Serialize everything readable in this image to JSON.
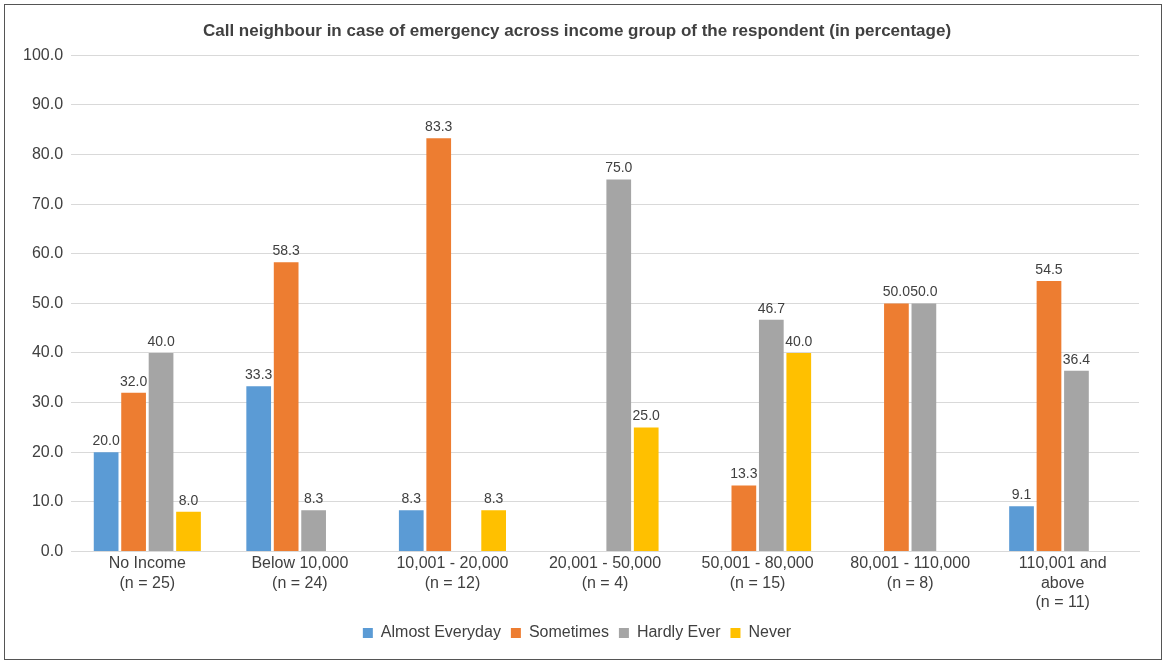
{
  "chart_data": {
    "type": "bar",
    "title": "Call neighbour in case of emergency across income group of the respondent (in percentage)",
    "categories": [
      "No Income\n(n = 25)",
      "Below 10,000\n(n = 24)",
      "10,001 - 20,000\n(n = 12)",
      "20,001 - 50,000\n(n = 4)",
      "50,001 - 80,000\n(n = 15)",
      "80,001 - 110,000\n(n = 8)",
      "110,001 and\nabove\n(n = 11)"
    ],
    "series": [
      {
        "name": "Almost Everyday",
        "color": "#5b9bd5",
        "values": [
          20.0,
          33.3,
          8.3,
          null,
          null,
          null,
          9.1
        ],
        "value_labels": [
          "20.0",
          "33.3",
          "8.3",
          null,
          null,
          null,
          "9.1"
        ]
      },
      {
        "name": "Sometimes",
        "color": "#ed7d31",
        "values": [
          32.0,
          58.3,
          83.3,
          null,
          13.3,
          50.0,
          54.5
        ],
        "value_labels": [
          "32.0",
          "58.3",
          "83.3",
          null,
          "13.3",
          "50.0",
          "54.5"
        ]
      },
      {
        "name": "Hardly Ever",
        "color": "#a5a5a5",
        "values": [
          40.0,
          8.3,
          null,
          75.0,
          46.7,
          50.0,
          36.4
        ],
        "value_labels": [
          "40.0",
          "8.3",
          null,
          "75.0",
          "46.7",
          "50.0",
          "36.4"
        ]
      },
      {
        "name": "Never",
        "color": "#ffc000",
        "values": [
          8.0,
          null,
          8.3,
          25.0,
          40.0,
          null,
          null
        ],
        "value_labels": [
          "8.0",
          null,
          "8.3",
          "25.0",
          "40.0",
          null,
          null
        ]
      }
    ],
    "ylim": [
      0,
      100
    ],
    "yticks": [
      {
        "value": 0,
        "label": "0.0"
      },
      {
        "value": 10,
        "label": "10.0"
      },
      {
        "value": 20,
        "label": "20.0"
      },
      {
        "value": 30,
        "label": "30.0"
      },
      {
        "value": 40,
        "label": "40.0"
      },
      {
        "value": 50,
        "label": "50.0"
      },
      {
        "value": 60,
        "label": "60.0"
      },
      {
        "value": 70,
        "label": "70.0"
      },
      {
        "value": 80,
        "label": "80.0"
      },
      {
        "value": 90,
        "label": "90.0"
      },
      {
        "value": 100,
        "label": "100.0"
      }
    ],
    "grid": "y",
    "legend": "bottom"
  }
}
